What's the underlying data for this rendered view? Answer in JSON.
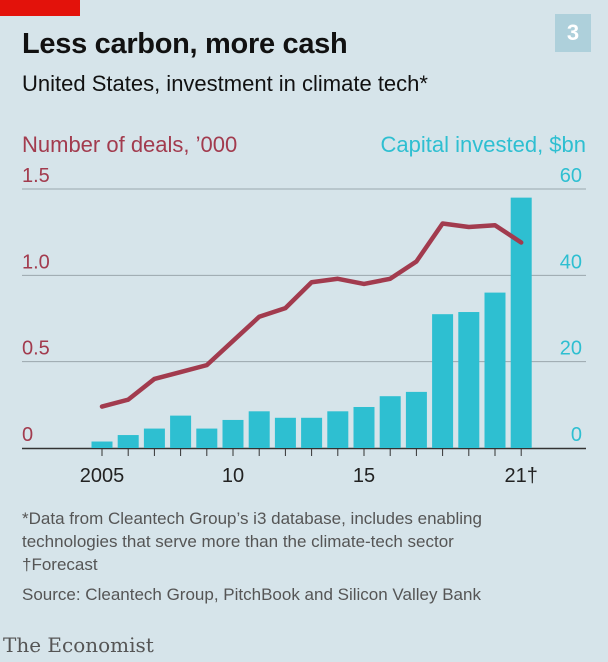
{
  "header": {
    "chart_number": "3",
    "title": "Less carbon, more cash",
    "subtitle": "United States, investment in climate tech*"
  },
  "colors": {
    "line": "#a23b4e",
    "bars": "#2ebfd1",
    "background": "#d6e4ea",
    "grid": "#9aa7ad",
    "brand_red": "#e3120b"
  },
  "chart_data": {
    "type": "bar+line",
    "title": "Less carbon, more cash",
    "subtitle": "United States, investment in climate tech*",
    "x": [
      2005,
      2006,
      2007,
      2008,
      2009,
      2010,
      2011,
      2012,
      2013,
      2014,
      2015,
      2016,
      2017,
      2018,
      2019,
      2020,
      2021
    ],
    "x_tick_labels": [
      {
        "x": 2005,
        "label": "2005"
      },
      {
        "x": 2010,
        "label": "10"
      },
      {
        "x": 2015,
        "label": "15"
      },
      {
        "x": 2021,
        "label": "21†"
      }
    ],
    "left_axis": {
      "label": "Number of deals, ’000",
      "ylim": [
        0,
        1.5
      ],
      "ticks": [
        {
          "value": 0,
          "label": "0"
        },
        {
          "value": 0.5,
          "label": "0.5"
        },
        {
          "value": 1.0,
          "label": "1.0"
        },
        {
          "value": 1.5,
          "label": "1.5"
        }
      ]
    },
    "right_axis": {
      "label": "Capital invested, $bn",
      "ylim": [
        0,
        60
      ],
      "ticks": [
        {
          "value": 0,
          "label": "0"
        },
        {
          "value": 20,
          "label": "20"
        },
        {
          "value": 40,
          "label": "40"
        },
        {
          "value": 60,
          "label": "60"
        }
      ]
    },
    "series": [
      {
        "name": "Capital invested, $bn",
        "type": "bar",
        "axis": "right",
        "values": [
          1.5,
          3,
          4.5,
          7.5,
          4.5,
          6.5,
          8.5,
          7,
          7,
          8.5,
          9.5,
          12,
          13,
          31,
          31.5,
          36,
          58
        ]
      },
      {
        "name": "Number of deals, ’000",
        "type": "line",
        "axis": "left",
        "values": [
          0.24,
          0.28,
          0.4,
          0.44,
          0.48,
          0.62,
          0.76,
          0.81,
          0.96,
          0.98,
          0.95,
          0.98,
          1.08,
          1.3,
          1.28,
          1.29,
          1.19
        ]
      }
    ],
    "grid": true
  },
  "footnotes": {
    "note1": "*Data from Cleantech Group’s i3 database, includes enabling",
    "note2": "technologies that serve more than the climate-tech sector",
    "note3": "†Forecast",
    "source": "Source: Cleantech Group, PitchBook and Silicon Valley Bank"
  },
  "brand": "The Economist"
}
